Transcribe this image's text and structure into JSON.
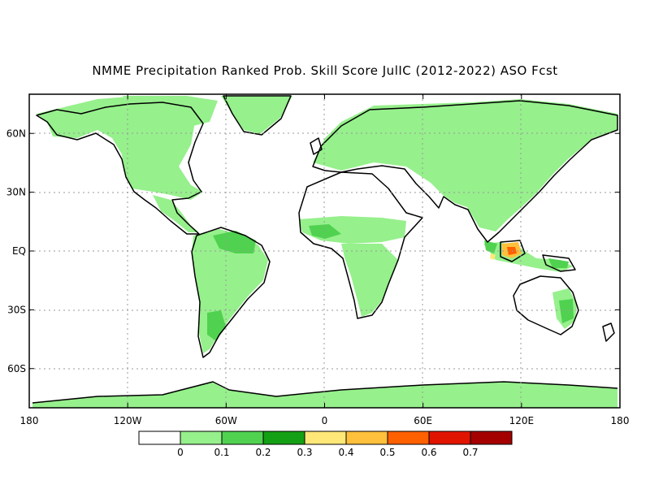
{
  "title": "NMME Precipitation Ranked Prob. Skill Score JulIC (2012-2022) ASO Fcst",
  "map": {
    "lon_range": [
      -180,
      180
    ],
    "lat_range": [
      -80,
      80
    ],
    "x_ticks": [
      {
        "lon": -180,
        "label": "180"
      },
      {
        "lon": -120,
        "label": "120W"
      },
      {
        "lon": -60,
        "label": "60W"
      },
      {
        "lon": 0,
        "label": "0"
      },
      {
        "lon": 60,
        "label": "60E"
      },
      {
        "lon": 120,
        "label": "120E"
      },
      {
        "lon": 180,
        "label": "180"
      }
    ],
    "y_ticks": [
      {
        "lat": 60,
        "label": "60N"
      },
      {
        "lat": 30,
        "label": "30N"
      },
      {
        "lat": 0,
        "label": "EQ"
      },
      {
        "lat": -30,
        "label": "30S"
      },
      {
        "lat": -60,
        "label": "60S"
      }
    ],
    "grid": true
  },
  "colorbar": {
    "colors": [
      "#ffffff",
      "#96f08c",
      "#50d250",
      "#14a014",
      "#ffe878",
      "#ffc03c",
      "#ff6000",
      "#e11400",
      "#a50000"
    ],
    "labels": [
      "0",
      "0.1",
      "0.2",
      "0.3",
      "0.4",
      "0.5",
      "0.6",
      "0.7"
    ]
  }
}
